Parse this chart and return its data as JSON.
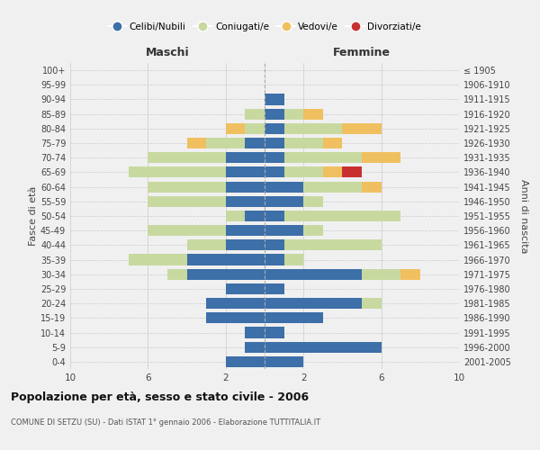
{
  "age_groups": [
    "0-4",
    "5-9",
    "10-14",
    "15-19",
    "20-24",
    "25-29",
    "30-34",
    "35-39",
    "40-44",
    "45-49",
    "50-54",
    "55-59",
    "60-64",
    "65-69",
    "70-74",
    "75-79",
    "80-84",
    "85-89",
    "90-94",
    "95-99",
    "100+"
  ],
  "birth_years": [
    "2001-2005",
    "1996-2000",
    "1991-1995",
    "1986-1990",
    "1981-1985",
    "1976-1980",
    "1971-1975",
    "1966-1970",
    "1961-1965",
    "1956-1960",
    "1951-1955",
    "1946-1950",
    "1941-1945",
    "1936-1940",
    "1931-1935",
    "1926-1930",
    "1921-1925",
    "1916-1920",
    "1911-1915",
    "1906-1910",
    "≤ 1905"
  ],
  "male_celibi": [
    2,
    1,
    1,
    3,
    3,
    2,
    4,
    4,
    2,
    2,
    1,
    2,
    2,
    2,
    2,
    1,
    0,
    0,
    0,
    0,
    0
  ],
  "male_coniugati": [
    0,
    0,
    0,
    0,
    0,
    0,
    1,
    3,
    2,
    4,
    1,
    4,
    4,
    5,
    4,
    2,
    1,
    1,
    0,
    0,
    0
  ],
  "male_vedovi": [
    0,
    0,
    0,
    0,
    0,
    0,
    0,
    0,
    0,
    0,
    0,
    0,
    0,
    0,
    0,
    1,
    1,
    0,
    0,
    0,
    0
  ],
  "male_divorziati": [
    0,
    0,
    0,
    0,
    0,
    0,
    0,
    0,
    0,
    0,
    0,
    0,
    0,
    0,
    0,
    0,
    0,
    0,
    0,
    0,
    0
  ],
  "female_celibi": [
    2,
    6,
    1,
    3,
    5,
    1,
    5,
    1,
    1,
    2,
    1,
    2,
    2,
    1,
    1,
    1,
    1,
    1,
    1,
    0,
    0
  ],
  "female_coniugati": [
    0,
    0,
    0,
    0,
    1,
    0,
    2,
    1,
    5,
    1,
    6,
    1,
    3,
    2,
    4,
    2,
    3,
    1,
    0,
    0,
    0
  ],
  "female_vedovi": [
    0,
    0,
    0,
    0,
    0,
    0,
    1,
    0,
    0,
    0,
    0,
    0,
    1,
    1,
    2,
    1,
    2,
    1,
    0,
    0,
    0
  ],
  "female_divorziati": [
    0,
    0,
    0,
    0,
    0,
    0,
    0,
    0,
    0,
    0,
    0,
    0,
    0,
    1,
    0,
    0,
    0,
    0,
    0,
    0,
    0
  ],
  "color_celibi": "#3d6fa8",
  "color_coniugati": "#c8d9a0",
  "color_vedovi": "#f0c060",
  "color_divorziati": "#c83030",
  "title": "Popolazione per età, sesso e stato civile - 2006",
  "subtitle": "COMUNE DI SETZU (SU) - Dati ISTAT 1° gennaio 2006 - Elaborazione TUTTITALIA.IT",
  "xlabel_left": "Maschi",
  "xlabel_right": "Femmine",
  "ylabel_left": "Fasce di età",
  "ylabel_right": "Anni di nascita",
  "background_color": "#f0f0f0",
  "grid_color": "#cccccc"
}
